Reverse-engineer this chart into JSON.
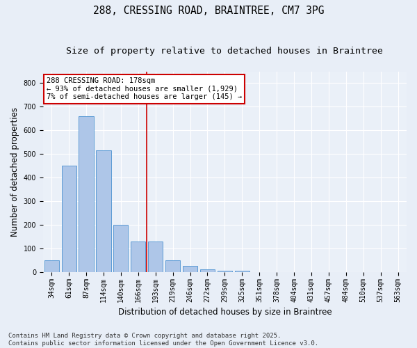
{
  "title": "288, CRESSING ROAD, BRAINTREE, CM7 3PG",
  "subtitle": "Size of property relative to detached houses in Braintree",
  "xlabel": "Distribution of detached houses by size in Braintree",
  "ylabel": "Number of detached properties",
  "categories": [
    "34sqm",
    "61sqm",
    "87sqm",
    "114sqm",
    "140sqm",
    "166sqm",
    "193sqm",
    "219sqm",
    "246sqm",
    "272sqm",
    "299sqm",
    "325sqm",
    "351sqm",
    "378sqm",
    "404sqm",
    "431sqm",
    "457sqm",
    "484sqm",
    "510sqm",
    "537sqm",
    "563sqm"
  ],
  "values": [
    50,
    450,
    660,
    515,
    200,
    130,
    130,
    50,
    25,
    10,
    5,
    5,
    0,
    0,
    0,
    0,
    0,
    0,
    0,
    0,
    0
  ],
  "bar_color": "#aec6e8",
  "bar_edge_color": "#5b9bd5",
  "annotation_text": "288 CRESSING ROAD: 178sqm\n← 93% of detached houses are smaller (1,929)\n7% of semi-detached houses are larger (145) →",
  "annotation_box_color": "#ffffff",
  "annotation_box_edge": "#cc0000",
  "vline_color": "#cc0000",
  "vline_x": 5.5,
  "ylim": [
    0,
    850
  ],
  "yticks": [
    0,
    100,
    200,
    300,
    400,
    500,
    600,
    700,
    800
  ],
  "bg_color": "#e8eef7",
  "plot_bg_color": "#eaf0f8",
  "footer": "Contains HM Land Registry data © Crown copyright and database right 2025.\nContains public sector information licensed under the Open Government Licence v3.0.",
  "title_fontsize": 10.5,
  "subtitle_fontsize": 9.5,
  "axis_label_fontsize": 8.5,
  "tick_fontsize": 7,
  "footer_fontsize": 6.5,
  "annotation_fontsize": 7.5
}
